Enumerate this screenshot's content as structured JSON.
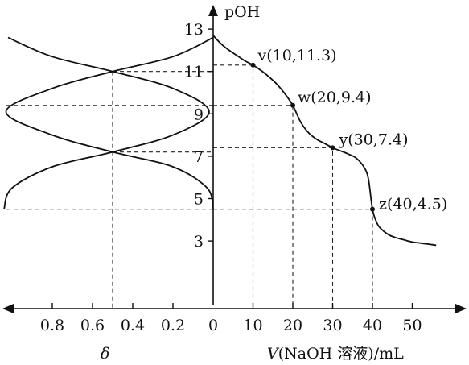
{
  "chart_data": [
    {
      "type": "line",
      "title": "",
      "xlabel": "V(NaOH 溶液)/mL",
      "ylabel": "pOH",
      "x_ticks": [
        "0",
        "10",
        "20",
        "30",
        "40",
        "50"
      ],
      "y_ticks": [
        "3",
        "5",
        "7",
        "9",
        "11",
        "13"
      ],
      "xlim": [
        0,
        57
      ],
      "ylim": [
        1.7,
        15.1
      ],
      "series": [
        {
          "x": [
            0,
            2,
            4,
            6,
            8,
            10,
            12,
            14,
            16,
            18,
            20,
            22,
            24,
            26,
            28,
            30,
            32,
            34,
            36,
            38,
            39,
            40,
            41,
            42,
            44,
            46,
            48,
            50,
            52,
            54,
            56
          ],
          "y": [
            12.7,
            12.3,
            12.0,
            11.75,
            11.5,
            11.3,
            11.05,
            10.75,
            10.4,
            9.95,
            9.4,
            8.6,
            8.1,
            7.8,
            7.6,
            7.4,
            7.25,
            7.1,
            6.9,
            6.45,
            5.9,
            4.5,
            3.9,
            3.6,
            3.3,
            3.15,
            3.05,
            2.95,
            2.9,
            2.85,
            2.8
          ]
        }
      ],
      "points": [
        {
          "label": "v(10,11.3)",
          "x": 10,
          "y": 11.3
        },
        {
          "label": "w(20,9.4)",
          "x": 20,
          "y": 9.4
        },
        {
          "label": "y(30,7.4)",
          "x": 30,
          "y": 7.4
        },
        {
          "label": "z(40,4.5)",
          "x": 40,
          "y": 4.5
        }
      ]
    },
    {
      "type": "line",
      "title": "",
      "xlabel": "δ",
      "ylabel": "pOH",
      "x_ticks": [
        "0.8",
        "0.6",
        "0.4",
        "0.2",
        "0"
      ],
      "xlim": [
        1.05,
        0
      ],
      "ylim": [
        1.7,
        15.1
      ],
      "crossings": [
        {
          "delta": 0.5,
          "pOH": 11.0
        },
        {
          "delta": 0.5,
          "pOH": 7.2
        }
      ],
      "series": [
        {
          "pOH": [
            4.5,
            5.5,
            6.5,
            7.2,
            8.0,
            9.1,
            10.2,
            11.0,
            11.7,
            12.6
          ],
          "delta": [
            1.04,
            1.0,
            0.8,
            0.5,
            0.2,
            0.02,
            0.2,
            0.5,
            0.8,
            1.02
          ]
        },
        {
          "pOH": [
            4.5,
            5.5,
            6.5,
            7.2,
            8.0,
            9.1,
            10.2,
            11.0,
            11.7,
            12.6
          ],
          "delta": [
            0.0,
            0.03,
            0.2,
            0.5,
            0.8,
            1.03,
            0.8,
            0.5,
            0.2,
            0.0
          ]
        }
      ]
    }
  ]
}
